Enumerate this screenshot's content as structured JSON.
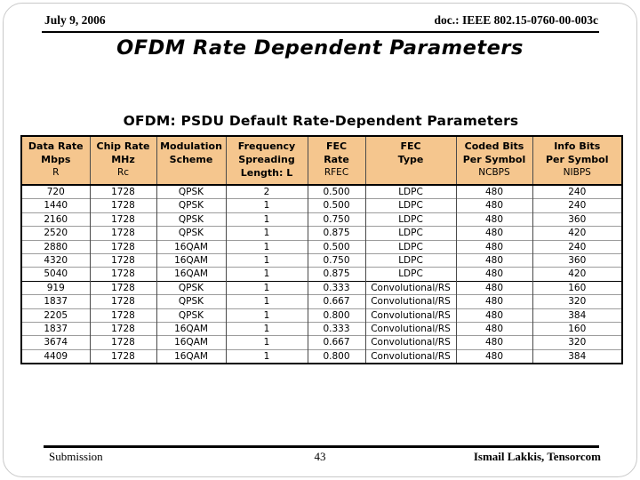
{
  "header": {
    "date": "July 9, 2006",
    "doc_ref": "doc.: IEEE 802.15-0760-00-003c"
  },
  "title": "OFDM Rate Dependent Parameters",
  "table": {
    "title": "OFDM: PSDU Default Rate-Dependent Parameters",
    "columns": [
      {
        "lines": [
          "Data Rate",
          "Mbps"
        ],
        "sub": "R"
      },
      {
        "lines": [
          "Chip Rate",
          "MHz"
        ],
        "sub": "Rc"
      },
      {
        "lines": [
          "Modulation",
          "Scheme"
        ],
        "sub": ""
      },
      {
        "lines": [
          "Frequency",
          "Spreading",
          "Length: L"
        ],
        "sub": ""
      },
      {
        "lines": [
          "FEC",
          "Rate"
        ],
        "sub": "RFEC"
      },
      {
        "lines": [
          "FEC",
          "Type"
        ],
        "sub": ""
      },
      {
        "lines": [
          "Coded Bits",
          "Per Symbol"
        ],
        "sub": "NCBPS"
      },
      {
        "lines": [
          "Info Bits",
          "Per Symbol"
        ],
        "sub": "NIBPS"
      }
    ],
    "rows": [
      [
        "720",
        "1728",
        "QPSK",
        "2",
        "0.500",
        "LDPC",
        "480",
        "240"
      ],
      [
        "1440",
        "1728",
        "QPSK",
        "1",
        "0.500",
        "LDPC",
        "480",
        "240"
      ],
      [
        "2160",
        "1728",
        "QPSK",
        "1",
        "0.750",
        "LDPC",
        "480",
        "360"
      ],
      [
        "2520",
        "1728",
        "QPSK",
        "1",
        "0.875",
        "LDPC",
        "480",
        "420"
      ],
      [
        "2880",
        "1728",
        "16QAM",
        "1",
        "0.500",
        "LDPC",
        "480",
        "240"
      ],
      [
        "4320",
        "1728",
        "16QAM",
        "1",
        "0.750",
        "LDPC",
        "480",
        "360"
      ],
      [
        "5040",
        "1728",
        "16QAM",
        "1",
        "0.875",
        "LDPC",
        "480",
        "420"
      ],
      [
        "919",
        "1728",
        "QPSK",
        "1",
        "0.333",
        "Convolutional/RS",
        "480",
        "160"
      ],
      [
        "1837",
        "1728",
        "QPSK",
        "1",
        "0.667",
        "Convolutional/RS",
        "480",
        "320"
      ],
      [
        "2205",
        "1728",
        "QPSK",
        "1",
        "0.800",
        "Convolutional/RS",
        "480",
        "384"
      ],
      [
        "1837",
        "1728",
        "16QAM",
        "1",
        "0.333",
        "Convolutional/RS",
        "480",
        "160"
      ],
      [
        "3674",
        "1728",
        "16QAM",
        "1",
        "0.667",
        "Convolutional/RS",
        "480",
        "320"
      ],
      [
        "4409",
        "1728",
        "16QAM",
        "1",
        "0.800",
        "Convolutional/RS",
        "480",
        "384"
      ]
    ],
    "section_break_row_index": 7
  },
  "footer": {
    "left": "Submission",
    "page_number": "43",
    "right": "Ismail Lakkis, Tensorcom"
  },
  "colors": {
    "header_fill": "#F5C68E",
    "text": "#000000",
    "row_divider": "#9C9C9C"
  }
}
